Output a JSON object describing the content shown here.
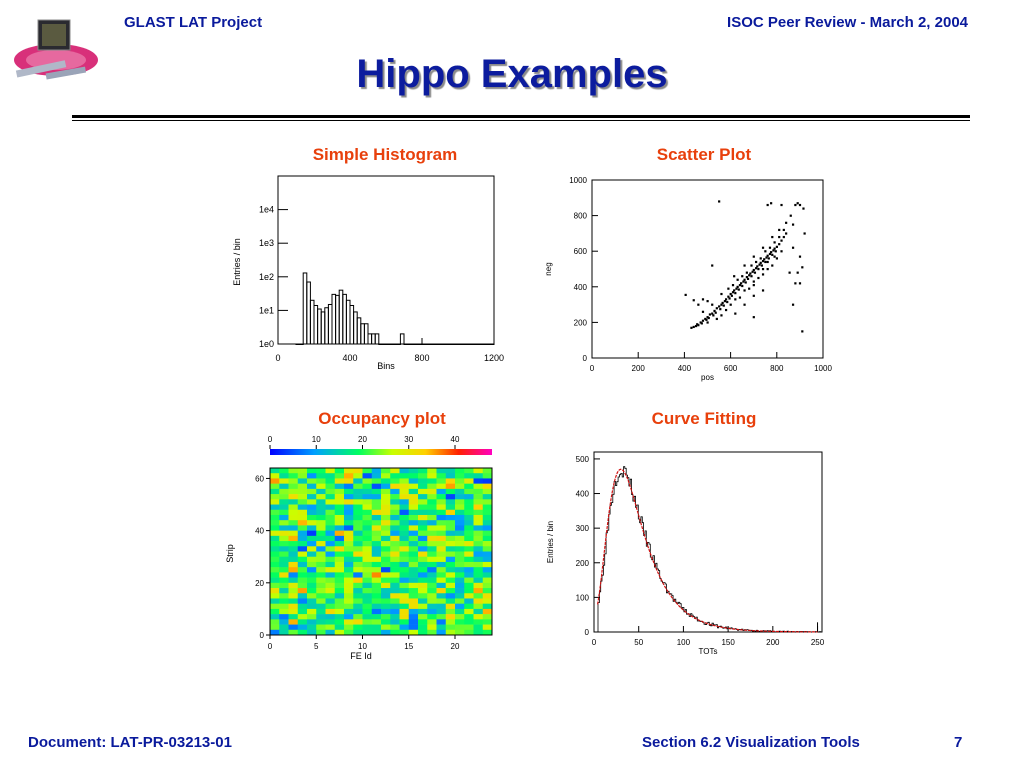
{
  "header": {
    "left": "GLAST LAT Project",
    "right": "ISOC Peer Review -  March 2, 2004"
  },
  "title": "Hippo Examples",
  "footer": {
    "document": "Document:  LAT-PR-03213-01",
    "section": "Section 6.2  Visualization Tools",
    "page": "7"
  },
  "chart_data": [
    {
      "type": "bar",
      "title": "Simple Histogram",
      "xlabel": "Bins",
      "ylabel": "Entries / bin",
      "y_scale": "log",
      "xlim": [
        0,
        1200
      ],
      "ylim": [
        1,
        100000
      ],
      "x_ticks": [
        0,
        400,
        800,
        1200
      ],
      "y_ticks": [
        "1e0",
        "1e1",
        "1e2",
        "1e3",
        "1e4"
      ],
      "y_tick_values": [
        1,
        10,
        100,
        1000,
        10000
      ],
      "bin_width": 20,
      "x": [
        110,
        130,
        150,
        170,
        190,
        210,
        230,
        250,
        270,
        290,
        310,
        330,
        350,
        370,
        390,
        410,
        430,
        450,
        470,
        490,
        510,
        530,
        550,
        570,
        590,
        610,
        630,
        650,
        670,
        690,
        710,
        730,
        750,
        770,
        790,
        810,
        830,
        850,
        870,
        890,
        910,
        930,
        950,
        970,
        990,
        1010,
        1030,
        1050,
        1070,
        1090,
        1110,
        1130,
        1150,
        1170,
        1190
      ],
      "values": [
        1,
        1,
        130,
        70,
        20,
        14,
        11,
        9,
        12,
        15,
        30,
        28,
        40,
        30,
        20,
        14,
        9,
        6,
        4,
        4,
        2,
        2,
        2,
        1,
        1,
        1,
        1,
        1,
        1,
        2,
        1,
        1,
        1,
        1,
        1,
        1,
        1,
        1,
        1,
        1,
        1,
        1,
        1,
        1,
        1,
        1,
        1,
        1,
        1,
        1,
        1,
        1,
        1,
        1,
        1
      ]
    },
    {
      "type": "scatter",
      "title": "Scatter Plot",
      "xlabel": "pos",
      "ylabel": "neg",
      "xlim": [
        0,
        1000
      ],
      "ylim": [
        0,
        1000
      ],
      "x_ticks": [
        0,
        200,
        400,
        600,
        800,
        1000
      ],
      "y_ticks": [
        0,
        200,
        400,
        600,
        800,
        1000
      ],
      "points": [
        [
          430,
          170
        ],
        [
          440,
          175
        ],
        [
          450,
          180
        ],
        [
          455,
          190
        ],
        [
          460,
          185
        ],
        [
          470,
          200
        ],
        [
          475,
          195
        ],
        [
          480,
          210
        ],
        [
          490,
          220
        ],
        [
          495,
          215
        ],
        [
          500,
          230
        ],
        [
          505,
          225
        ],
        [
          510,
          245
        ],
        [
          520,
          250
        ],
        [
          525,
          240
        ],
        [
          530,
          265
        ],
        [
          535,
          255
        ],
        [
          540,
          280
        ],
        [
          550,
          290
        ],
        [
          555,
          275
        ],
        [
          560,
          300
        ],
        [
          565,
          310
        ],
        [
          570,
          295
        ],
        [
          575,
          320
        ],
        [
          580,
          330
        ],
        [
          585,
          315
        ],
        [
          590,
          345
        ],
        [
          595,
          335
        ],
        [
          600,
          360
        ],
        [
          605,
          350
        ],
        [
          610,
          370
        ],
        [
          615,
          380
        ],
        [
          620,
          365
        ],
        [
          625,
          390
        ],
        [
          630,
          400
        ],
        [
          635,
          385
        ],
        [
          640,
          410
        ],
        [
          645,
          420
        ],
        [
          650,
          405
        ],
        [
          655,
          430
        ],
        [
          660,
          440
        ],
        [
          665,
          425
        ],
        [
          670,
          455
        ],
        [
          675,
          445
        ],
        [
          680,
          465
        ],
        [
          685,
          475
        ],
        [
          690,
          460
        ],
        [
          695,
          485
        ],
        [
          700,
          495
        ],
        [
          705,
          480
        ],
        [
          710,
          505
        ],
        [
          715,
          515
        ],
        [
          720,
          500
        ],
        [
          725,
          525
        ],
        [
          730,
          535
        ],
        [
          735,
          520
        ],
        [
          740,
          545
        ],
        [
          745,
          555
        ],
        [
          750,
          540
        ],
        [
          755,
          565
        ],
        [
          760,
          575
        ],
        [
          765,
          560
        ],
        [
          770,
          585
        ],
        [
          775,
          595
        ],
        [
          780,
          580
        ],
        [
          785,
          605
        ],
        [
          790,
          615
        ],
        [
          795,
          600
        ],
        [
          800,
          625
        ],
        [
          810,
          640
        ],
        [
          820,
          660
        ],
        [
          830,
          680
        ],
        [
          840,
          700
        ],
        [
          520,
          300
        ],
        [
          560,
          240
        ],
        [
          600,
          300
        ],
        [
          640,
          340
        ],
        [
          680,
          390
        ],
        [
          700,
          430
        ],
        [
          720,
          450
        ],
        [
          740,
          470
        ],
        [
          760,
          500
        ],
        [
          780,
          520
        ],
        [
          800,
          560
        ],
        [
          820,
          600
        ],
        [
          540,
          220
        ],
        [
          580,
          270
        ],
        [
          620,
          330
        ],
        [
          660,
          380
        ],
        [
          700,
          410
        ],
        [
          740,
          500
        ],
        [
          760,
          540
        ],
        [
          790,
          570
        ],
        [
          610,
          410
        ],
        [
          650,
          460
        ],
        [
          690,
          520
        ],
        [
          730,
          560
        ],
        [
          770,
          620
        ],
        [
          810,
          680
        ],
        [
          480,
          260
        ],
        [
          500,
          200
        ],
        [
          460,
          300
        ],
        [
          620,
          250
        ],
        [
          660,
          300
        ],
        [
          700,
          350
        ],
        [
          560,
          360
        ],
        [
          590,
          390
        ],
        [
          630,
          440
        ],
        [
          670,
          480
        ],
        [
          710,
          540
        ],
        [
          750,
          600
        ],
        [
          790,
          650
        ],
        [
          830,
          720
        ],
        [
          860,
          800
        ],
        [
          870,
          750
        ],
        [
          820,
          860
        ],
        [
          760,
          860
        ],
        [
          870,
          620
        ],
        [
          855,
          480
        ],
        [
          740,
          380
        ],
        [
          880,
          860
        ],
        [
          900,
          860
        ],
        [
          915,
          840
        ],
        [
          920,
          700
        ],
        [
          900,
          570
        ],
        [
          910,
          510
        ],
        [
          880,
          420
        ],
        [
          900,
          420
        ],
        [
          910,
          150
        ],
        [
          775,
          870
        ],
        [
          550,
          880
        ],
        [
          890,
          870
        ],
        [
          615,
          460
        ],
        [
          405,
          355
        ],
        [
          440,
          325
        ],
        [
          480,
          330
        ],
        [
          500,
          320
        ],
        [
          520,
          520
        ],
        [
          700,
          230
        ],
        [
          870,
          300
        ],
        [
          890,
          480
        ],
        [
          660,
          520
        ],
        [
          700,
          570
        ],
        [
          740,
          620
        ],
        [
          780,
          680
        ],
        [
          810,
          720
        ],
        [
          840,
          760
        ]
      ]
    },
    {
      "type": "heatmap",
      "title": "Occupancy plot",
      "xlabel": "FE Id",
      "ylabel": "Strip",
      "xlim": [
        0,
        24
      ],
      "ylim": [
        0,
        64
      ],
      "x_ticks": [
        0,
        5,
        10,
        15,
        20
      ],
      "y_ticks": [
        0,
        20,
        40,
        60
      ],
      "colorbar_ticks": [
        0,
        10,
        20,
        30,
        40
      ],
      "colorbar_range": [
        0,
        48
      ],
      "value_mean": 20,
      "value_spread": 8
    },
    {
      "type": "bar",
      "title": "Curve Fitting",
      "xlabel": "TOTs",
      "ylabel": "Entries / bin",
      "xlim": [
        0,
        255
      ],
      "ylim": [
        0,
        520
      ],
      "x_ticks": [
        0,
        50,
        100,
        150,
        200,
        250
      ],
      "y_ticks": [
        0,
        100,
        200,
        300,
        400,
        500
      ],
      "fit_line_color": "#d01010",
      "peak_x": 30,
      "peak_value": 470
    }
  ]
}
